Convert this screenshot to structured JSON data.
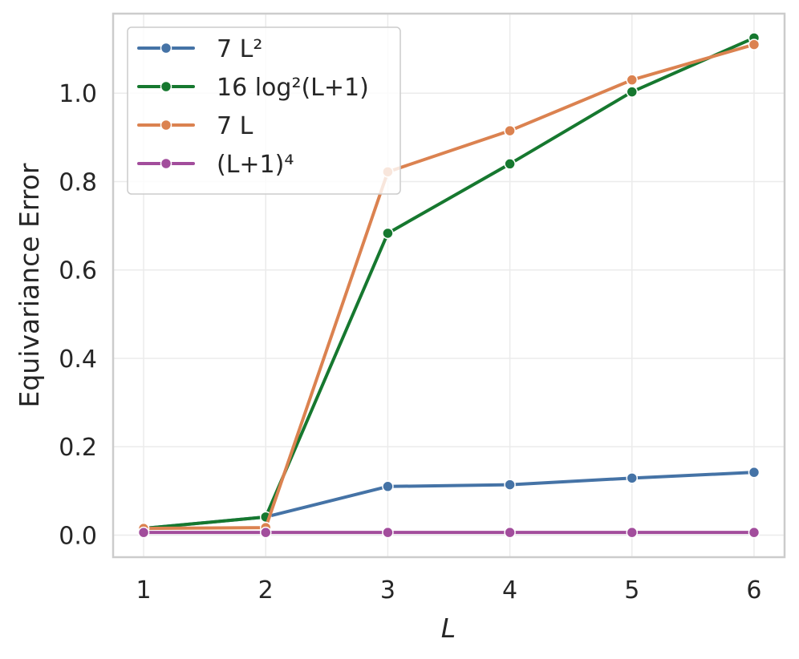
{
  "chart_data": {
    "type": "line",
    "xlabel": "L",
    "ylabel": "Equivariance Error",
    "x": [
      1,
      2,
      3,
      4,
      5,
      6
    ],
    "x_ticks": [
      "1",
      "2",
      "3",
      "4",
      "5",
      "6"
    ],
    "y_ticks": [
      "0.0",
      "0.2",
      "0.4",
      "0.6",
      "0.8",
      "1.0"
    ],
    "xlim": [
      0.75,
      6.25
    ],
    "ylim": [
      -0.05,
      1.18
    ],
    "grid": true,
    "legend_position": "top-left",
    "series": [
      {
        "name": "7 L²",
        "color": "#4573a6",
        "values": [
          0.015,
          0.041,
          0.11,
          0.114,
          0.129,
          0.142
        ]
      },
      {
        "name": "16 log²(L+1)",
        "color": "#16782f",
        "values": [
          0.015,
          0.041,
          0.683,
          0.84,
          1.003,
          1.125
        ]
      },
      {
        "name": "7 L",
        "color": "#db8250",
        "values": [
          0.015,
          0.017,
          0.822,
          0.915,
          1.03,
          1.11
        ]
      },
      {
        "name": "(L+1)⁴",
        "color": "#a24d9c",
        "values": [
          0.006,
          0.006,
          0.006,
          0.006,
          0.006,
          0.006
        ]
      }
    ]
  }
}
